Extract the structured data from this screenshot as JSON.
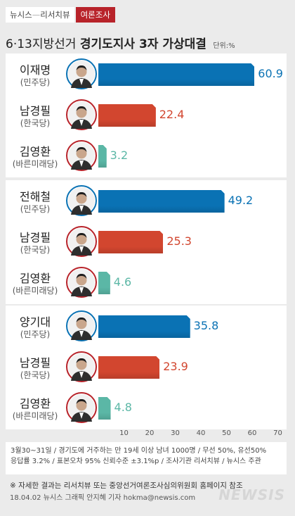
{
  "header": {
    "brand": "뉴시스",
    "separator": "—",
    "sub_brand": "리서치뷰",
    "tag": "여론조사"
  },
  "title": {
    "prefix": "6·13지방선거",
    "main": "경기도지사 3자 가상대결",
    "unit": "단위:%"
  },
  "colors": {
    "민주당": "#0a72b4",
    "한국당": "#d2462f",
    "바른미래당": "#5bb7a6",
    "panel_border": "#b8232a"
  },
  "chart_data": {
    "type": "bar",
    "orientation": "horizontal",
    "xlim": [
      0,
      70
    ],
    "ticks": [
      10,
      20,
      30,
      40,
      50,
      60,
      70
    ],
    "matchups": [
      {
        "candidates": [
          {
            "name": "이재명",
            "party": "(민주당)",
            "party_key": "민주당",
            "value": 60.9,
            "value_label": "60.9"
          },
          {
            "name": "남경필",
            "party": "(한국당)",
            "party_key": "한국당",
            "value": 22.4,
            "value_label": "22.4"
          },
          {
            "name": "김영환",
            "party": "(바른미래당)",
            "party_key": "바른미래당",
            "value": 3.2,
            "value_label": "3.2"
          }
        ]
      },
      {
        "candidates": [
          {
            "name": "전해철",
            "party": "(민주당)",
            "party_key": "민주당",
            "value": 49.2,
            "value_label": "49.2"
          },
          {
            "name": "남경필",
            "party": "(한국당)",
            "party_key": "한국당",
            "value": 25.3,
            "value_label": "25.3"
          },
          {
            "name": "김영환",
            "party": "(바른미래당)",
            "party_key": "바른미래당",
            "value": 4.6,
            "value_label": "4.6"
          }
        ]
      },
      {
        "candidates": [
          {
            "name": "양기대",
            "party": "(민주당)",
            "party_key": "민주당",
            "value": 35.8,
            "value_label": "35.8"
          },
          {
            "name": "남경필",
            "party": "(한국당)",
            "party_key": "한국당",
            "value": 23.9,
            "value_label": "23.9"
          },
          {
            "name": "김영환",
            "party": "(바른미래당)",
            "party_key": "바른미래당",
            "value": 4.8,
            "value_label": "4.8"
          }
        ]
      }
    ]
  },
  "notes": {
    "line1": "3월30~31일 / 경기도에 거주하는 만 19세 이상 남녀 1000명 / 무선 50%, 유선50%",
    "line2": "응답률 3.2% / 표본오차 95% 신뢰수준 ±3.1%p / 조사기관 리서치뷰 / 뉴시스 주관"
  },
  "reference": "※ 자세한 결과는 리서치뷰 또는 중앙선거여론조사심의위원회 홈페이지 참조",
  "credit": "18.04.02  뉴시스 그래픽 안지혜 기자  hokma@newsis.com",
  "watermark": "NEWSIS"
}
